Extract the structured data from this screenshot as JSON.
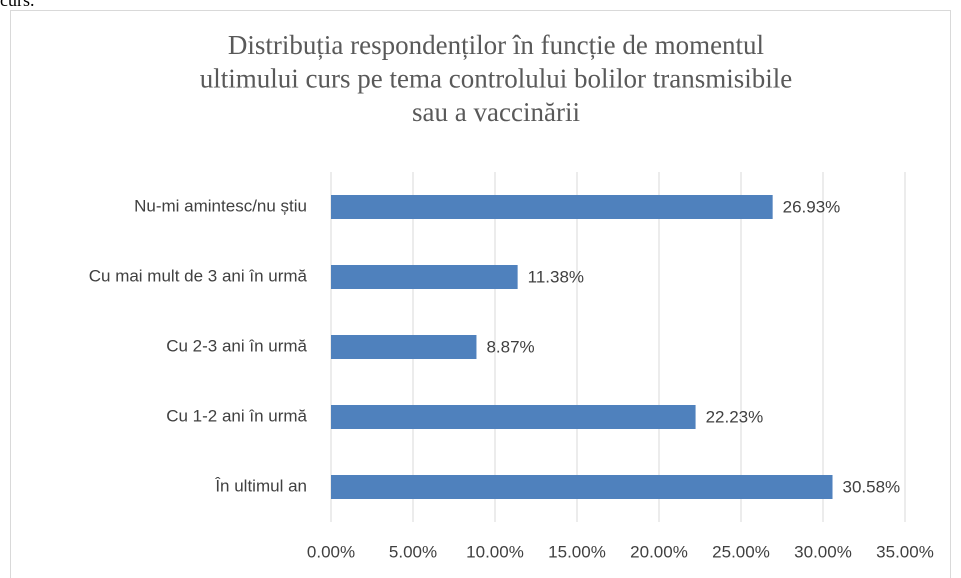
{
  "caption_fragment": "curs.",
  "chart_data": {
    "type": "bar",
    "orientation": "horizontal",
    "title": [
      "Distribuția respondenților în funcție de momentul",
      "ultimului curs pe tema controlului bolilor transmisibile",
      "sau a vaccinării"
    ],
    "categories": [
      "Nu-mi amintesc/nu știu",
      "Cu mai mult de 3 ani în urmă",
      "Cu 2-3 ani în urmă",
      "Cu 1-2 ani în urmă",
      "În ultimul an"
    ],
    "values": [
      26.93,
      11.38,
      8.87,
      22.23,
      30.58
    ],
    "value_labels": [
      "26.93%",
      "11.38%",
      "8.87%",
      "22.23%",
      "30.58%"
    ],
    "color": "#4f81bd",
    "xlim": [
      0,
      35
    ],
    "xticks": [
      {
        "value": 0,
        "label": "0.00%"
      },
      {
        "value": 5,
        "label": "5.00%"
      },
      {
        "value": 10,
        "label": "10.00%"
      },
      {
        "value": 15,
        "label": "15.00%"
      },
      {
        "value": 20,
        "label": "20.00%"
      },
      {
        "value": 25,
        "label": "25.00%"
      },
      {
        "value": 30,
        "label": "30.00%"
      },
      {
        "value": 35,
        "label": "35.00%"
      }
    ],
    "grid": true
  }
}
